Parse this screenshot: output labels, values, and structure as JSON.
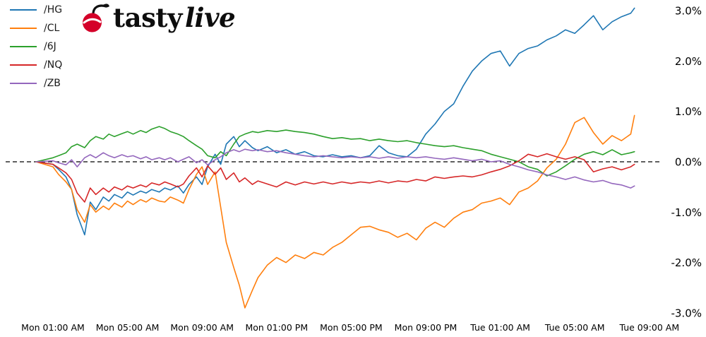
{
  "logo": {
    "tasty": "tasty",
    "live": "live",
    "cherry_color": "#d40029",
    "stem_color": "#111111"
  },
  "chart_data": {
    "type": "line",
    "title": "",
    "xlabel": "",
    "ylabel": "",
    "legend_position": "upper left",
    "grid": false,
    "zero_line": true,
    "ylim": [
      -3.2,
      3.2
    ],
    "x_unit_hours_from": "Mon 12:00 AM",
    "x": [
      0.1,
      1.0,
      1.3,
      1.7,
      2.0,
      2.3,
      2.7,
      3.0,
      3.3,
      3.7,
      4.0,
      4.3,
      4.7,
      5.0,
      5.3,
      5.7,
      6.0,
      6.3,
      6.7,
      7.0,
      7.3,
      7.7,
      8.0,
      8.3,
      8.7,
      9.0,
      9.3,
      9.7,
      10.0,
      10.3,
      10.7,
      11.0,
      11.3,
      11.7,
      12.0,
      12.5,
      13.0,
      13.5,
      14.0,
      14.5,
      15.0,
      15.5,
      16.0,
      16.5,
      17.0,
      17.5,
      18.0,
      18.5,
      19.0,
      19.5,
      20.0,
      20.5,
      21.0,
      21.5,
      22.0,
      22.5,
      23.0,
      23.5,
      24.0,
      24.5,
      25.0,
      25.5,
      26.0,
      26.5,
      27.0,
      27.5,
      28.0,
      28.5,
      29.0,
      29.5,
      30.0,
      30.5,
      31.0,
      31.5,
      32.0,
      32.2
    ],
    "series": [
      {
        "name": "/HG",
        "color": "#1f77b4",
        "values": [
          0.0,
          -0.05,
          -0.15,
          -0.3,
          -0.55,
          -1.05,
          -1.45,
          -0.8,
          -0.95,
          -0.7,
          -0.78,
          -0.65,
          -0.72,
          -0.6,
          -0.66,
          -0.58,
          -0.62,
          -0.55,
          -0.6,
          -0.52,
          -0.56,
          -0.48,
          -0.62,
          -0.45,
          -0.3,
          -0.45,
          -0.1,
          0.15,
          -0.05,
          0.35,
          0.5,
          0.3,
          0.42,
          0.28,
          0.22,
          0.3,
          0.18,
          0.24,
          0.15,
          0.2,
          0.12,
          0.1,
          0.14,
          0.1,
          0.12,
          0.08,
          0.12,
          0.32,
          0.18,
          0.12,
          0.1,
          0.25,
          0.55,
          0.75,
          1.0,
          1.15,
          1.5,
          1.8,
          2.0,
          2.15,
          2.2,
          1.9,
          2.15,
          2.25,
          2.3,
          2.42,
          2.5,
          2.62,
          2.55,
          2.72,
          2.9,
          2.62,
          2.78,
          2.88,
          2.95,
          3.05
        ]
      },
      {
        "name": "/CL",
        "color": "#ff7f0e",
        "values": [
          0.0,
          -0.1,
          -0.25,
          -0.4,
          -0.55,
          -0.95,
          -1.2,
          -0.85,
          -1.0,
          -0.88,
          -0.95,
          -0.82,
          -0.9,
          -0.78,
          -0.85,
          -0.75,
          -0.8,
          -0.72,
          -0.78,
          -0.8,
          -0.7,
          -0.76,
          -0.82,
          -0.55,
          -0.25,
          -0.1,
          -0.45,
          -0.2,
          -0.9,
          -1.6,
          -2.1,
          -2.45,
          -2.9,
          -2.55,
          -2.3,
          -2.05,
          -1.9,
          -2.0,
          -1.85,
          -1.92,
          -1.8,
          -1.85,
          -1.7,
          -1.6,
          -1.45,
          -1.3,
          -1.28,
          -1.35,
          -1.4,
          -1.5,
          -1.42,
          -1.55,
          -1.32,
          -1.2,
          -1.3,
          -1.12,
          -1.0,
          -0.95,
          -0.82,
          -0.78,
          -0.72,
          -0.85,
          -0.6,
          -0.52,
          -0.38,
          -0.12,
          0.05,
          0.35,
          0.78,
          0.88,
          0.58,
          0.35,
          0.52,
          0.42,
          0.55,
          0.92
        ]
      },
      {
        "name": "/6J",
        "color": "#2ca02c",
        "values": [
          0.0,
          0.08,
          0.12,
          0.18,
          0.3,
          0.35,
          0.28,
          0.42,
          0.5,
          0.45,
          0.55,
          0.5,
          0.56,
          0.6,
          0.55,
          0.62,
          0.58,
          0.65,
          0.7,
          0.66,
          0.6,
          0.55,
          0.5,
          0.42,
          0.32,
          0.25,
          0.12,
          0.08,
          0.2,
          0.12,
          0.35,
          0.5,
          0.55,
          0.6,
          0.58,
          0.62,
          0.6,
          0.63,
          0.6,
          0.58,
          0.55,
          0.5,
          0.46,
          0.48,
          0.45,
          0.46,
          0.42,
          0.45,
          0.42,
          0.4,
          0.42,
          0.38,
          0.35,
          0.32,
          0.3,
          0.32,
          0.28,
          0.25,
          0.22,
          0.15,
          0.1,
          0.05,
          0.0,
          -0.1,
          -0.15,
          -0.28,
          -0.2,
          -0.08,
          0.05,
          0.15,
          0.2,
          0.14,
          0.24,
          0.14,
          0.18,
          0.2
        ]
      },
      {
        "name": "/NQ",
        "color": "#d62728",
        "values": [
          0.0,
          -0.05,
          -0.12,
          -0.22,
          -0.35,
          -0.62,
          -0.8,
          -0.52,
          -0.65,
          -0.52,
          -0.6,
          -0.5,
          -0.56,
          -0.48,
          -0.52,
          -0.46,
          -0.5,
          -0.42,
          -0.46,
          -0.4,
          -0.44,
          -0.5,
          -0.44,
          -0.28,
          -0.12,
          -0.3,
          -0.08,
          -0.25,
          -0.12,
          -0.35,
          -0.22,
          -0.4,
          -0.32,
          -0.45,
          -0.38,
          -0.44,
          -0.5,
          -0.4,
          -0.46,
          -0.4,
          -0.44,
          -0.4,
          -0.44,
          -0.4,
          -0.43,
          -0.4,
          -0.42,
          -0.38,
          -0.42,
          -0.38,
          -0.4,
          -0.35,
          -0.38,
          -0.3,
          -0.33,
          -0.3,
          -0.28,
          -0.3,
          -0.26,
          -0.2,
          -0.15,
          -0.08,
          0.02,
          0.15,
          0.1,
          0.16,
          0.1,
          0.05,
          0.1,
          0.04,
          -0.2,
          -0.14,
          -0.1,
          -0.16,
          -0.1,
          -0.05
        ]
      },
      {
        "name": "/ZB",
        "color": "#9467bd",
        "values": [
          0.0,
          0.02,
          -0.02,
          -0.06,
          0.04,
          -0.1,
          0.08,
          0.14,
          0.08,
          0.18,
          0.12,
          0.08,
          0.14,
          0.1,
          0.12,
          0.06,
          0.1,
          0.04,
          0.08,
          0.04,
          0.08,
          0.0,
          0.05,
          0.1,
          -0.02,
          0.04,
          -0.06,
          0.04,
          0.1,
          0.18,
          0.24,
          0.2,
          0.25,
          0.22,
          0.24,
          0.2,
          0.22,
          0.18,
          0.15,
          0.12,
          0.1,
          0.12,
          0.1,
          0.08,
          0.1,
          0.08,
          0.1,
          0.07,
          0.1,
          0.07,
          0.1,
          0.08,
          0.1,
          0.07,
          0.05,
          0.08,
          0.05,
          0.02,
          0.05,
          0.0,
          0.02,
          -0.05,
          -0.1,
          -0.16,
          -0.2,
          -0.26,
          -0.3,
          -0.35,
          -0.3,
          -0.36,
          -0.4,
          -0.37,
          -0.43,
          -0.46,
          -0.52,
          -0.48
        ]
      }
    ],
    "y_ticks": [
      "3.0%",
      "2.0%",
      "1.0%",
      "0.0%",
      "-1.0%",
      "-2.0%",
      "-3.0%"
    ],
    "y_tick_values": [
      3,
      2,
      1,
      0,
      -1,
      -2,
      -3
    ],
    "x_ticks": [
      {
        "label": "Mon 01:00 AM",
        "t": 1
      },
      {
        "label": "Mon 05:00 AM",
        "t": 5
      },
      {
        "label": "Mon 09:00 AM",
        "t": 9
      },
      {
        "label": "Mon 01:00 PM",
        "t": 13
      },
      {
        "label": "Mon 05:00 PM",
        "t": 17
      },
      {
        "label": "Mon 09:00 PM",
        "t": 21
      },
      {
        "label": "Tue 01:00 AM",
        "t": 25
      },
      {
        "label": "Tue 05:00 AM",
        "t": 29
      },
      {
        "label": "Tue 09:00 AM",
        "t": 33
      }
    ]
  }
}
